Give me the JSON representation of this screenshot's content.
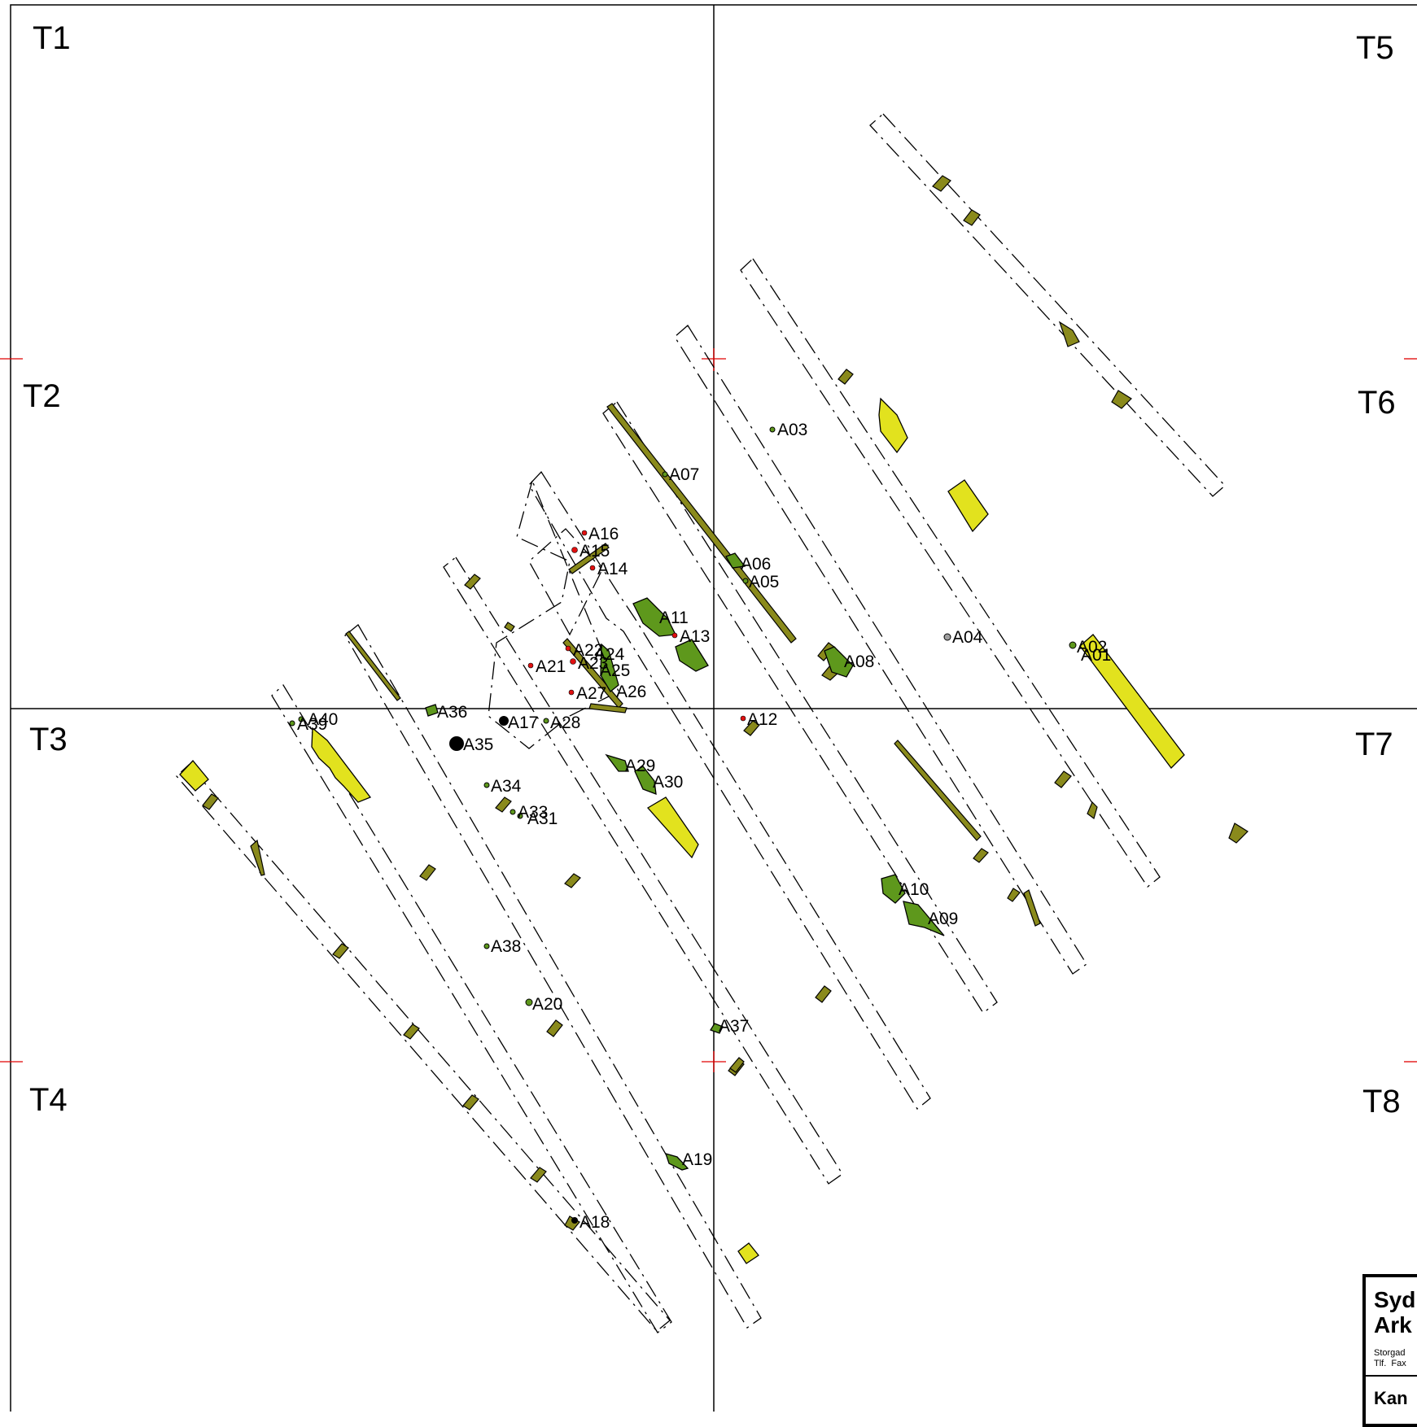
{
  "sheets": [
    "T1",
    "T2",
    "T3",
    "T4",
    "T5",
    "T6",
    "T7",
    "T8"
  ],
  "features": {
    "A01": "A01",
    "A02": "A02",
    "A03": "A03",
    "A04": "A04",
    "A05": "A05",
    "A06": "A06",
    "A07": "A07",
    "A08": "A08",
    "A09": "A09",
    "A10": "A10",
    "A11": "A11",
    "A12": "A12",
    "A13": "A13",
    "A14": "A14",
    "A15": "A15",
    "A16": "A16",
    "A17": "A17",
    "A18": "A18",
    "A19": "A19",
    "A20": "A20",
    "A21": "A21",
    "A22": "A22",
    "A23": "A23",
    "A24": "A24",
    "A25": "A25",
    "A26": "A26",
    "A27": "A27",
    "A28": "A28",
    "A29": "A29",
    "A30": "A30",
    "A31": "A31",
    "A33": "A33",
    "A34": "A34",
    "A35": "A35",
    "A36": "A36",
    "A37": "A37",
    "A38": "A38",
    "A39": "A39",
    "A40": "A40"
  },
  "title_block": {
    "title_line1": "Syd",
    "title_line2": "Ark",
    "address_line1": "Storgad",
    "address_line2": "Tlf.  Fax",
    "subtitle": "Kan"
  },
  "colors": {
    "trench_outline": "#000000",
    "grid_line": "#000000",
    "grid_tick": "#e00000",
    "ditch_fill": "#8a8a1c",
    "sand_fill": "#e2e21e",
    "pit_fill": "#5e981c",
    "posthole_fill": "#e01010"
  }
}
